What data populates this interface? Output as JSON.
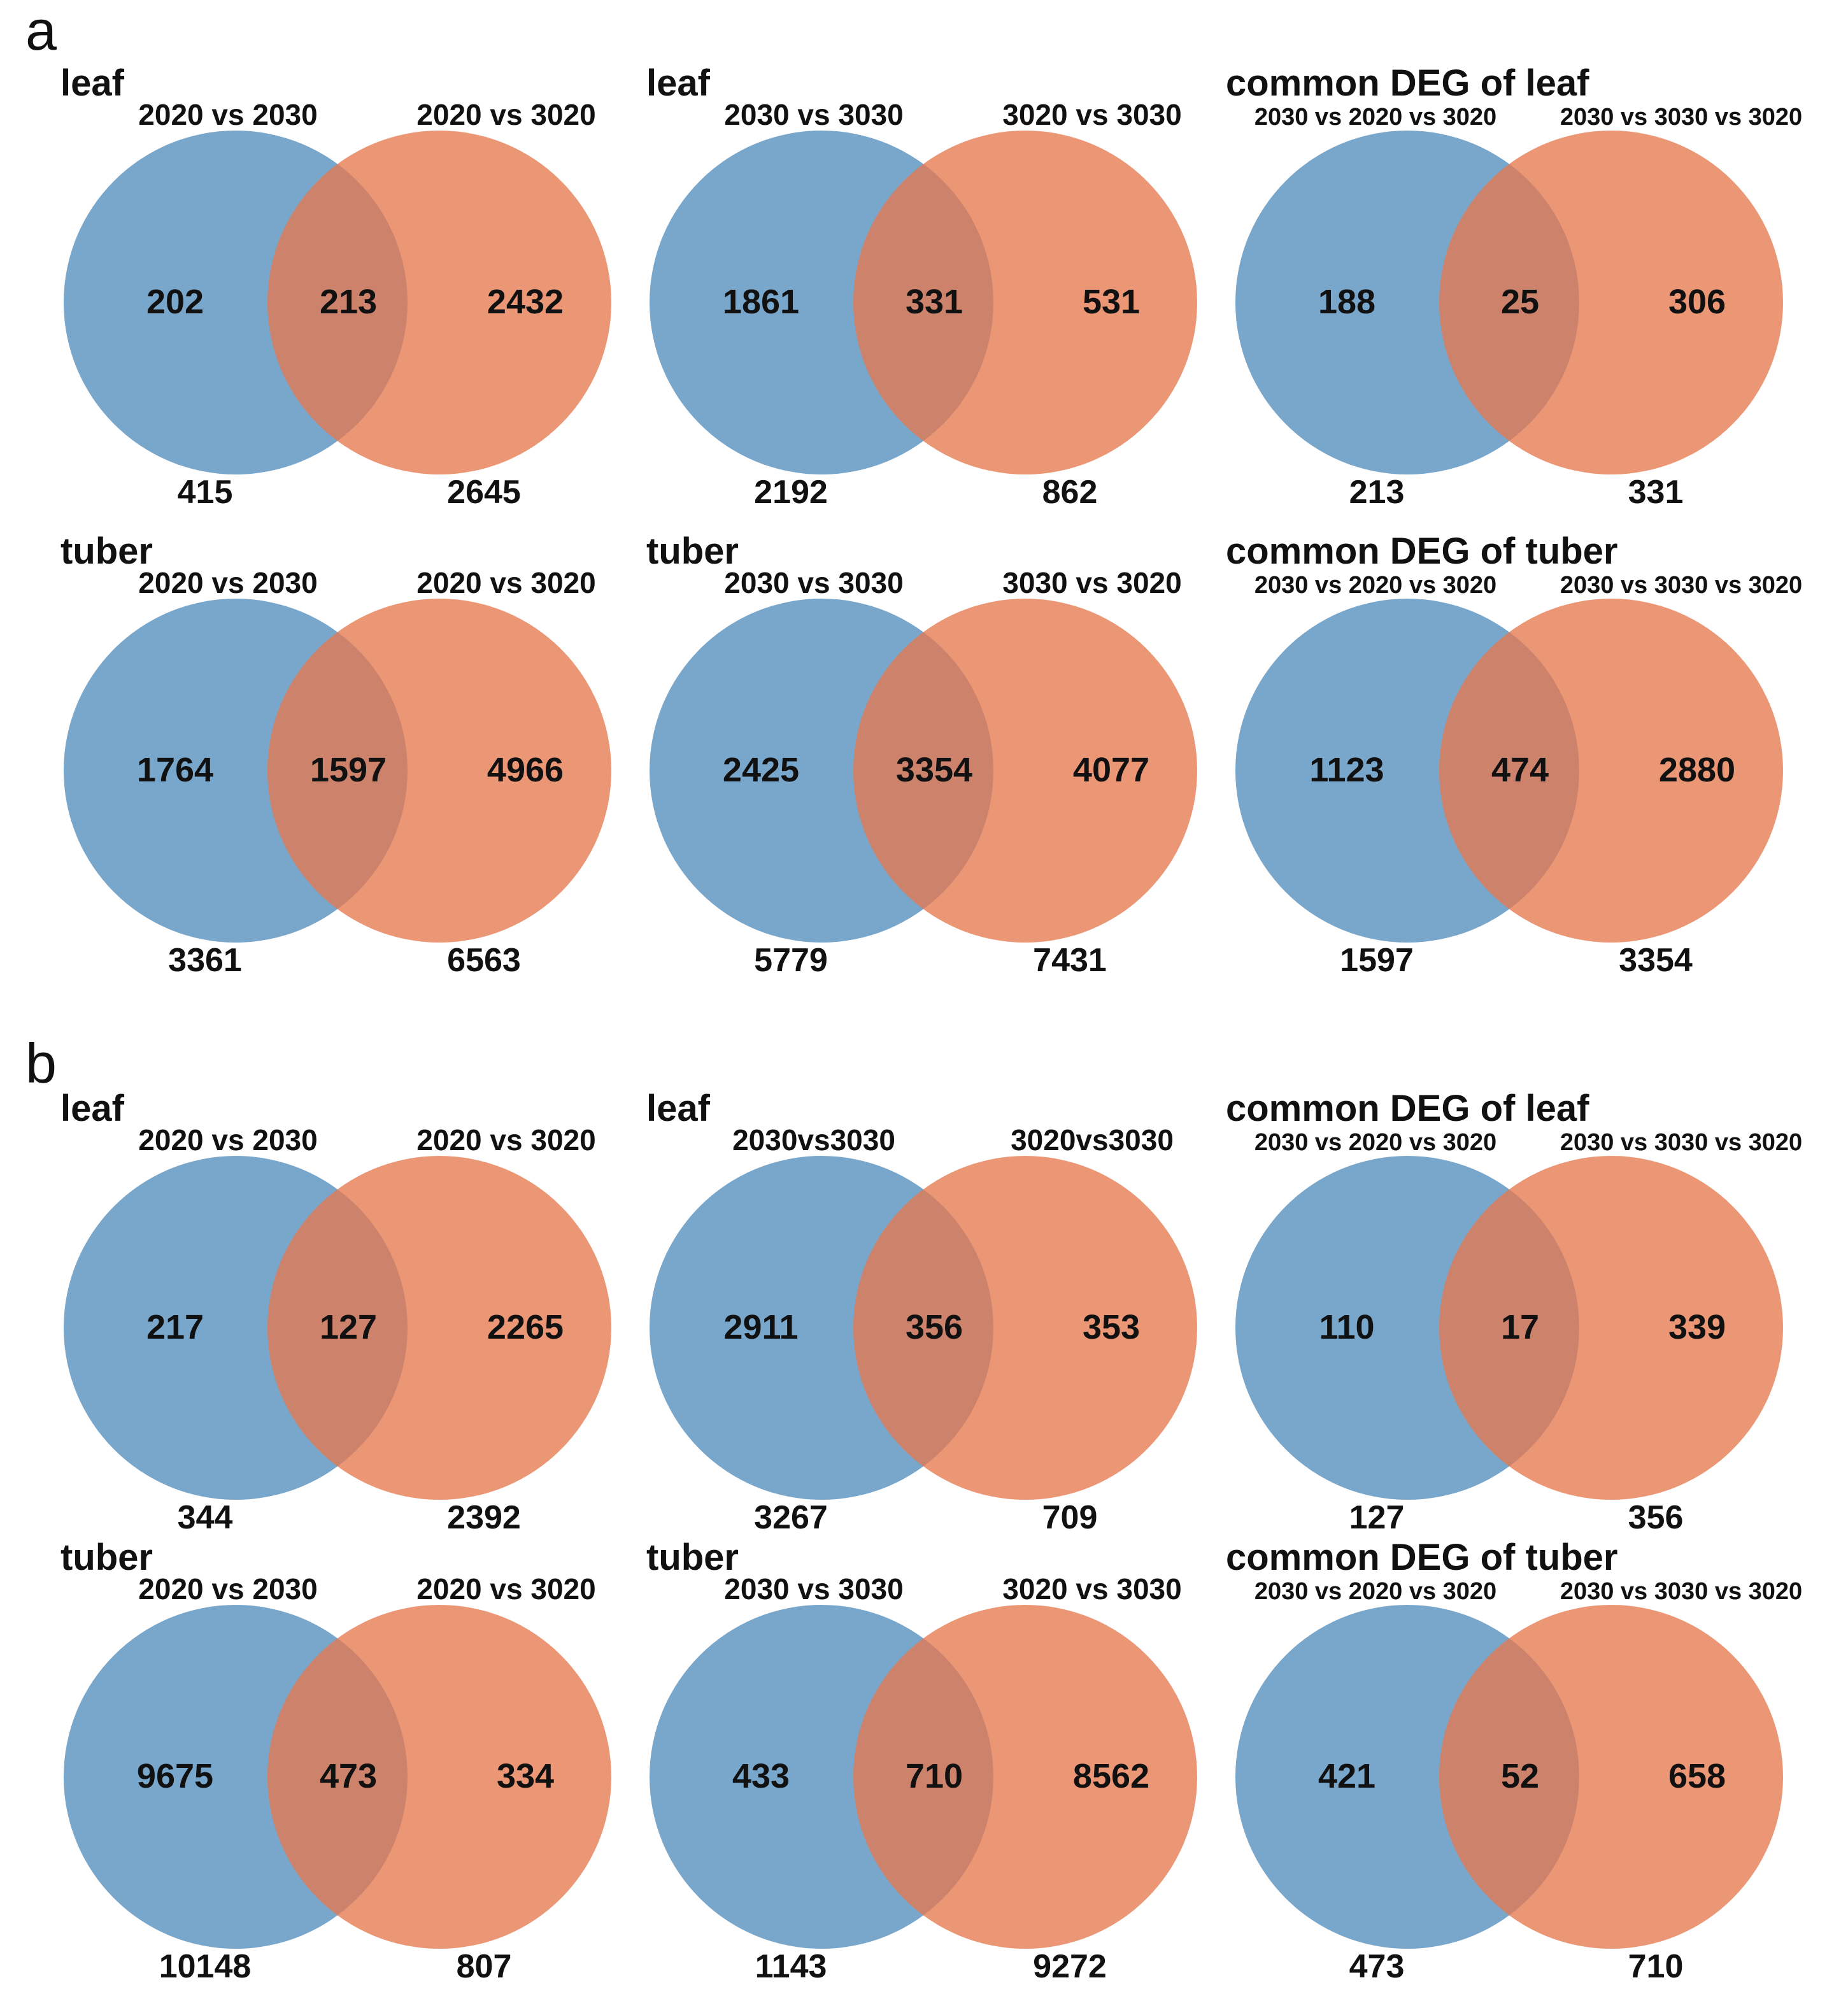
{
  "panels": [
    {
      "letter": "a",
      "rows": [
        {
          "venns": [
            {
              "title": "leaf",
              "left_label": "2020 vs 2030",
              "right_label": "2020 vs 3020",
              "left_only": "202",
              "overlap": "213",
              "right_only": "2432",
              "left_total": "415",
              "right_total": "2645"
            },
            {
              "title": "leaf",
              "left_label": "2030 vs 3030",
              "right_label": "3020 vs 3030",
              "left_only": "1861",
              "overlap": "331",
              "right_only": "531",
              "left_total": "2192",
              "right_total": "862"
            },
            {
              "title": "common DEG of leaf",
              "left_label": "2030 vs 2020 vs 3020",
              "right_label": "2030 vs 3030 vs 3020",
              "left_only": "188",
              "overlap": "25",
              "right_only": "306",
              "left_total": "213",
              "right_total": "331"
            }
          ]
        },
        {
          "venns": [
            {
              "title": "tuber",
              "left_label": "2020 vs 2030",
              "right_label": "2020 vs 3020",
              "left_only": "1764",
              "overlap": "1597",
              "right_only": "4966",
              "left_total": "3361",
              "right_total": "6563"
            },
            {
              "title": "tuber",
              "left_label": "2030 vs 3030",
              "right_label": "3030 vs 3020",
              "left_only": "2425",
              "overlap": "3354",
              "right_only": "4077",
              "left_total": "5779",
              "right_total": "7431"
            },
            {
              "title": "common DEG of tuber",
              "left_label": "2030 vs 2020 vs 3020",
              "right_label": "2030 vs 3030 vs 3020",
              "left_only": "1123",
              "overlap": "474",
              "right_only": "2880",
              "left_total": "1597",
              "right_total": "3354"
            }
          ]
        }
      ]
    },
    {
      "letter": "b",
      "rows": [
        {
          "venns": [
            {
              "title": "leaf",
              "left_label": "2020 vs 2030",
              "right_label": "2020 vs 3020",
              "left_only": "217",
              "overlap": "127",
              "right_only": "2265",
              "left_total": "344",
              "right_total": "2392"
            },
            {
              "title": "leaf",
              "left_label": "2030vs3030",
              "right_label": "3020vs3030",
              "left_only": "2911",
              "overlap": "356",
              "right_only": "353",
              "left_total": "3267",
              "right_total": "709"
            },
            {
              "title": "common DEG of leaf",
              "left_label": "2030 vs 2020 vs 3020",
              "right_label": "2030 vs 3030 vs 3020",
              "left_only": "110",
              "overlap": "17",
              "right_only": "339",
              "left_total": "127",
              "right_total": "356"
            }
          ]
        },
        {
          "venns": [
            {
              "title": "tuber",
              "left_label": "2020 vs 2030",
              "right_label": "2020 vs 3020",
              "left_only": "9675",
              "overlap": "473",
              "right_only": "334",
              "left_total": "10148",
              "right_total": "807"
            },
            {
              "title": "tuber",
              "left_label": "2030 vs 3030",
              "right_label": "3020 vs 3030",
              "left_only": "433",
              "overlap": "710",
              "right_only": "8562",
              "left_total": "1143",
              "right_total": "9272"
            },
            {
              "title": "common DEG of tuber",
              "left_label": "2030 vs 2020 vs 3020",
              "right_label": "2030 vs 3030 vs 3020",
              "left_only": "421",
              "overlap": "52",
              "right_only": "658",
              "left_total": "473",
              "right_total": "710"
            }
          ]
        }
      ]
    }
  ],
  "colors": {
    "left_circle": "#5c93bf",
    "right_circle": "#e57a4f"
  }
}
